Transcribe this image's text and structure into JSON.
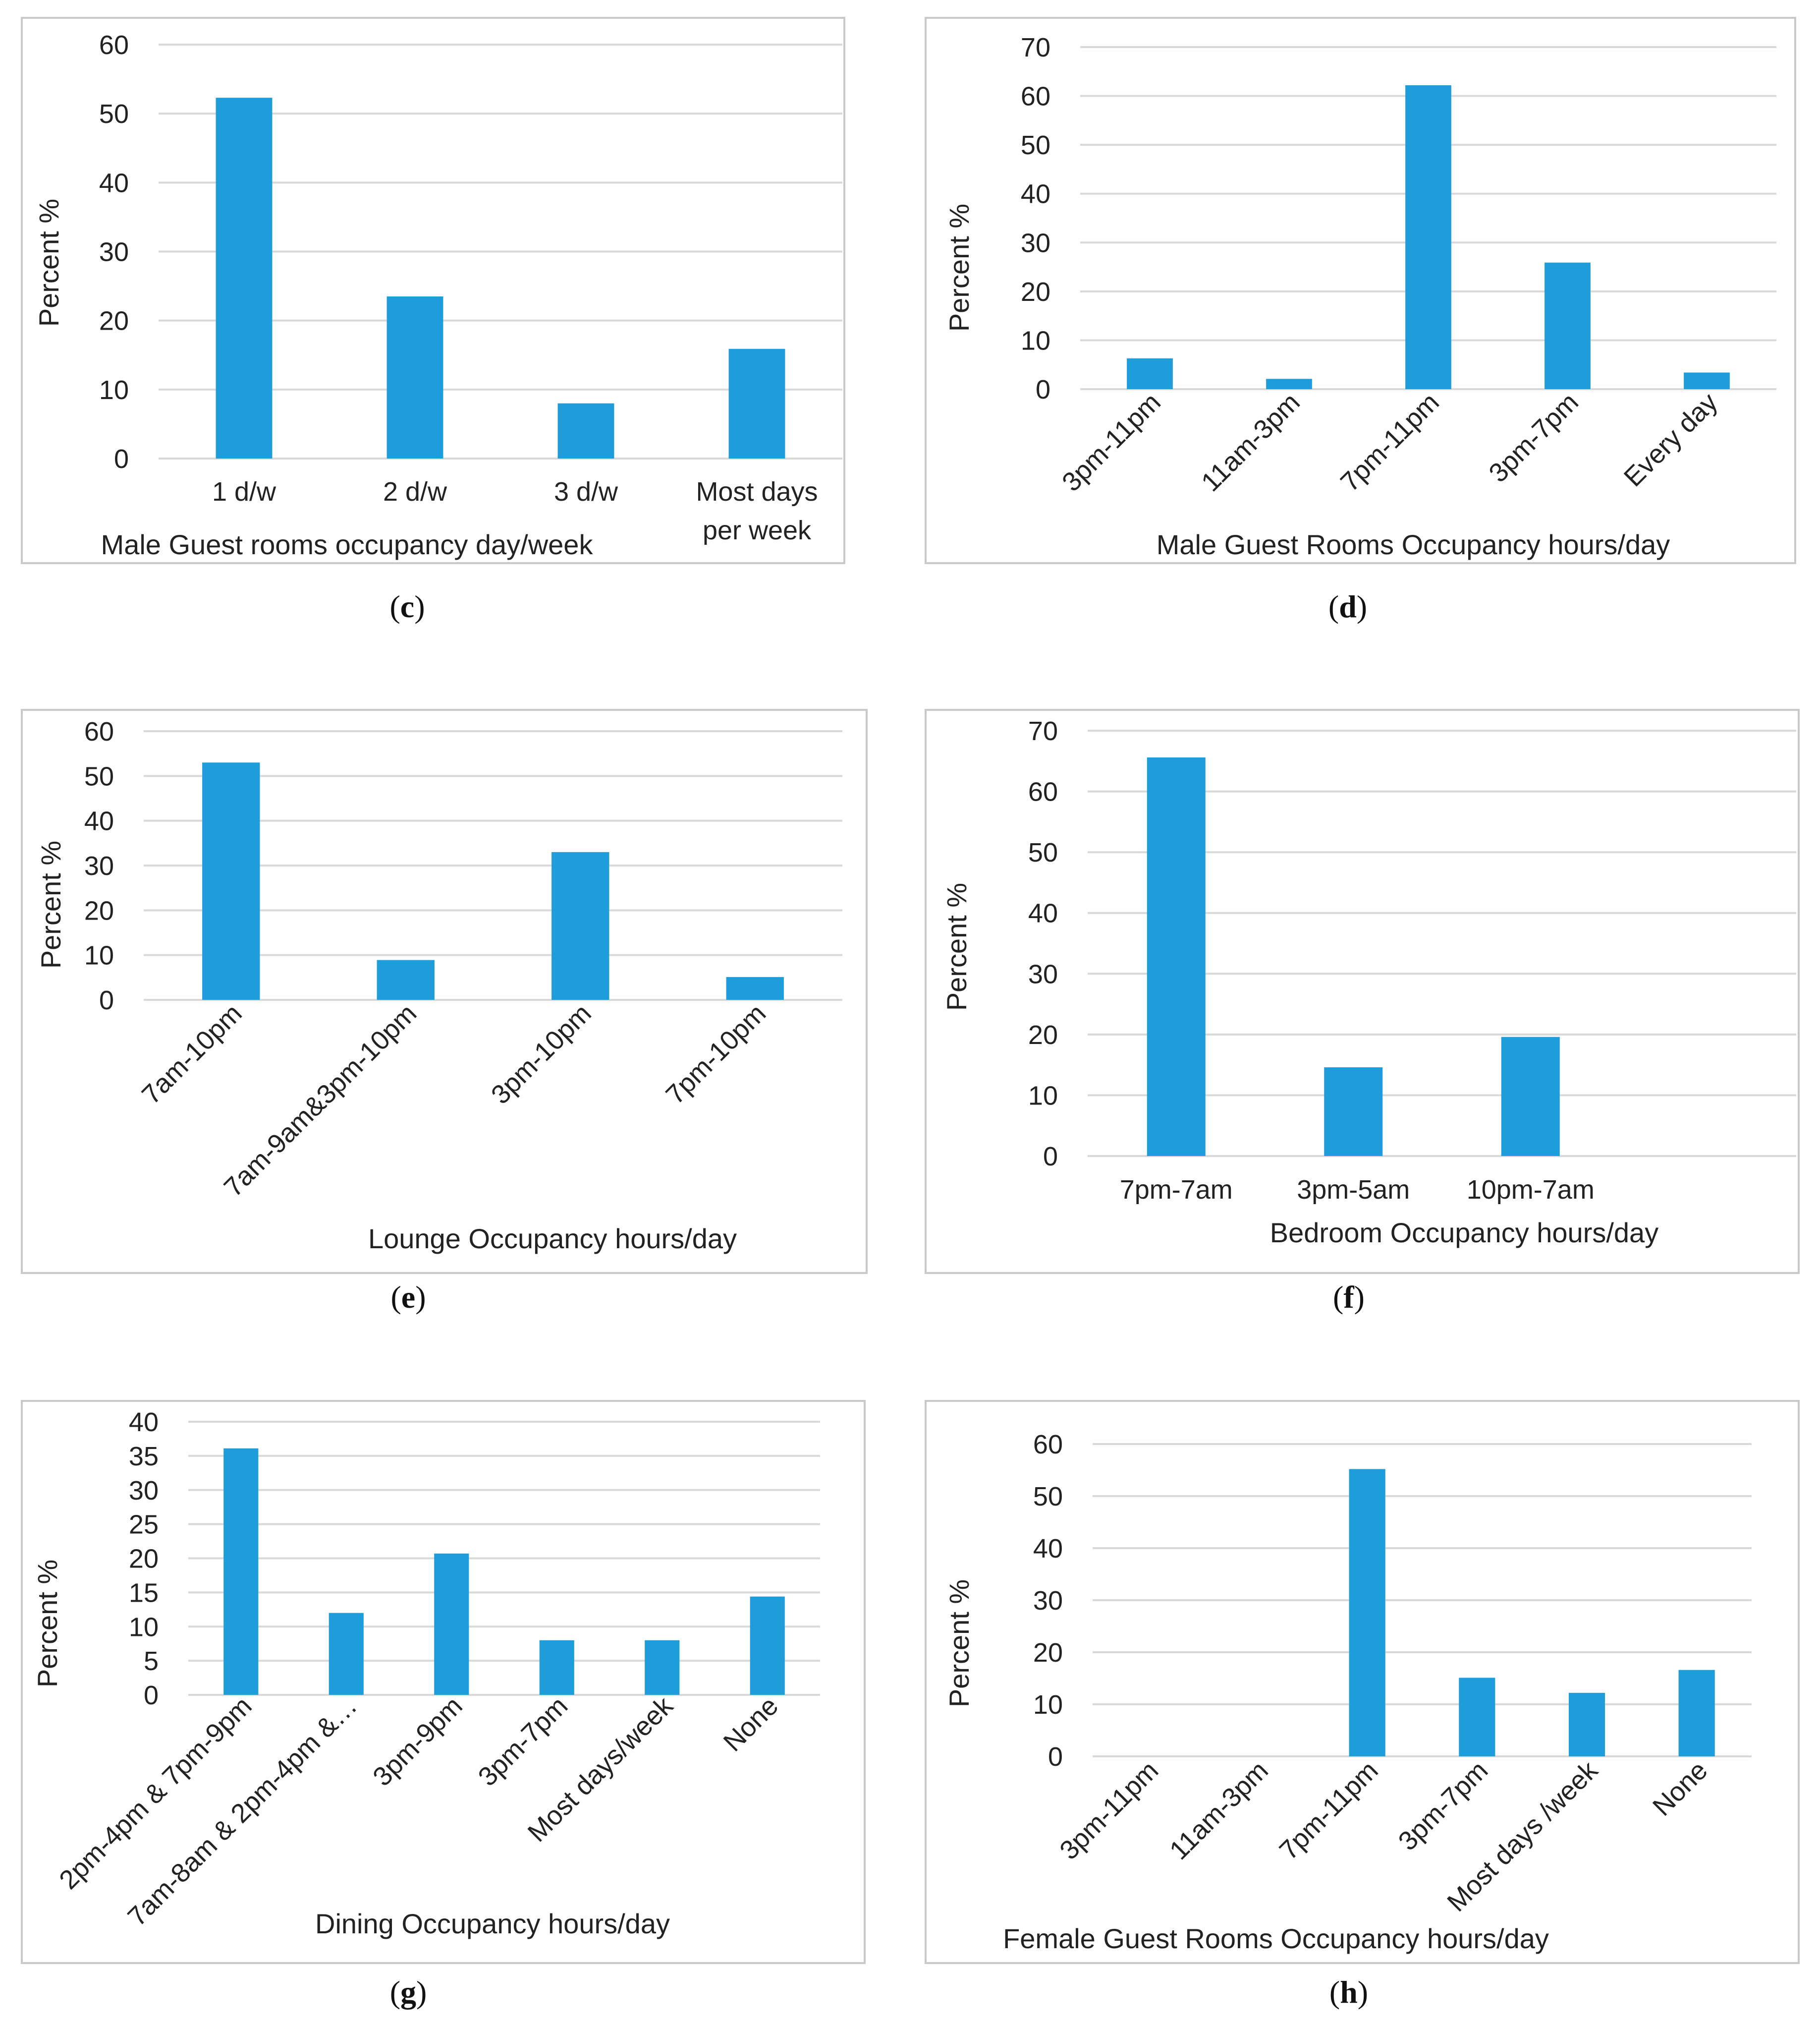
{
  "chart_data": [
    {
      "id": "c",
      "type": "bar",
      "caption_letter": "c",
      "title": "",
      "xlabel": "Male Guest rooms occupancy day/week",
      "ylabel": "Percent %",
      "ylim": [
        0,
        60
      ],
      "yticks": [
        0,
        10,
        20,
        30,
        40,
        50,
        60
      ],
      "categories": [
        "1 d/w",
        "2 d/w",
        "3 d/w",
        "Most days per week"
      ],
      "values": [
        52.3,
        23.5,
        8.0,
        15.9
      ],
      "grid": true,
      "legend": "none"
    },
    {
      "id": "d",
      "type": "bar",
      "caption_letter": "d",
      "title": "",
      "xlabel": "Male Guest Rooms Occupancy hours/day",
      "ylabel": "Percent %",
      "ylim": [
        0,
        70
      ],
      "yticks": [
        0,
        10,
        20,
        30,
        40,
        50,
        60,
        70
      ],
      "categories": [
        "3pm-11pm",
        "11am-3pm",
        "7pm-11pm",
        "3pm-7pm",
        "Every day"
      ],
      "values": [
        6.3,
        2.1,
        62.2,
        25.9,
        3.4
      ],
      "grid": true,
      "legend": "none"
    },
    {
      "id": "e",
      "type": "bar",
      "caption_letter": "e",
      "title": "",
      "xlabel": "Lounge Occupancy hours/day",
      "ylabel": "Percent %",
      "ylim": [
        0,
        60
      ],
      "yticks": [
        0,
        10,
        20,
        30,
        40,
        50,
        60
      ],
      "categories": [
        "7am-10pm",
        "7am-9am&3pm-10pm",
        "3pm-10pm",
        "7pm-10pm"
      ],
      "values": [
        53.0,
        8.9,
        33.0,
        5.1
      ],
      "grid": true,
      "legend": "none"
    },
    {
      "id": "f",
      "type": "bar",
      "caption_letter": "f",
      "title": "",
      "xlabel": "Bedroom Occupancy hours/day",
      "ylabel": "Percent %",
      "ylim": [
        0,
        70
      ],
      "yticks": [
        0,
        10,
        20,
        30,
        40,
        50,
        60,
        70
      ],
      "categories": [
        "7pm-7am",
        "3pm-5am",
        "10pm-7am",
        ""
      ],
      "values": [
        65.6,
        14.6,
        19.6,
        0
      ],
      "grid": true,
      "legend": "none"
    },
    {
      "id": "g",
      "type": "bar",
      "caption_letter": "g",
      "title": "",
      "xlabel": "Dining Occupancy hours/day",
      "ylabel": "Percent %",
      "ylim": [
        0,
        40
      ],
      "yticks": [
        0,
        5,
        10,
        15,
        20,
        25,
        30,
        35,
        40
      ],
      "categories": [
        "2pm-4pm & 7pm-9pm",
        "7am-8am & 2pm-4pm &…",
        "3pm-9pm",
        "3pm-7pm",
        "Most days/week",
        "None"
      ],
      "values": [
        36.1,
        12.0,
        20.7,
        8.0,
        8.0,
        14.4
      ],
      "grid": true,
      "legend": "none"
    },
    {
      "id": "h",
      "type": "bar",
      "caption_letter": "h",
      "title": "",
      "xlabel": "Female Guest Rooms Occupancy hours/day",
      "ylabel": "Percent %",
      "ylim": [
        0,
        60
      ],
      "yticks": [
        0,
        10,
        20,
        30,
        40,
        50,
        60
      ],
      "categories": [
        "3pm-11pm",
        "11am-3pm",
        "7pm-11pm",
        "3pm-7pm",
        "Most days /week",
        "None"
      ],
      "values": [
        0,
        0,
        55.2,
        15.1,
        12.2,
        16.6
      ],
      "grid": true,
      "legend": "none"
    }
  ]
}
